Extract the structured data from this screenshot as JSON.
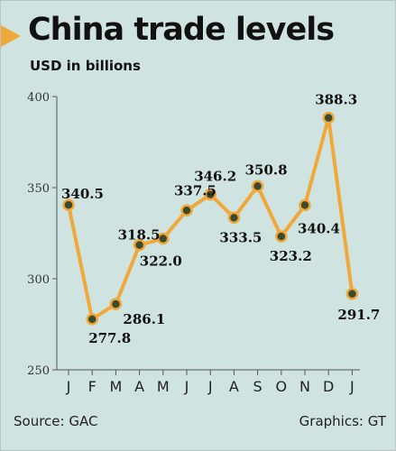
{
  "header": {
    "title": "China trade levels",
    "subtitle": "USD in billions"
  },
  "footer": {
    "source": "Source: GAC",
    "credit": "Graphics: GT"
  },
  "colors": {
    "background": "#cfe3e0",
    "line": "#f0a83a",
    "marker": "#3e4a2e",
    "axis": "#555555",
    "text": "#111111"
  },
  "chart_data": {
    "type": "line",
    "title": "China trade levels",
    "subtitle": "USD in billions",
    "xlabel": "",
    "ylabel": "",
    "categories": [
      "J",
      "F",
      "M",
      "A",
      "M",
      "J",
      "J",
      "A",
      "S",
      "O",
      "N",
      "D",
      "J"
    ],
    "series": [
      {
        "values": [
          340.5,
          277.8,
          286.1,
          318.5,
          322.0,
          337.5,
          346.2,
          333.5,
          350.8,
          323.2,
          340.4,
          388.3,
          291.7
        ],
        "labels": [
          "340.5",
          "277.8",
          "286.1",
          "318.5",
          "322.0",
          "337.5",
          "346.2",
          "333.5",
          "350.8",
          "323.2",
          "340.4",
          "388.3",
          "291.7"
        ]
      }
    ],
    "ylim": [
      250,
      400
    ],
    "yticks": [
      250,
      300,
      350,
      400
    ],
    "grid": false,
    "legend": "none"
  }
}
